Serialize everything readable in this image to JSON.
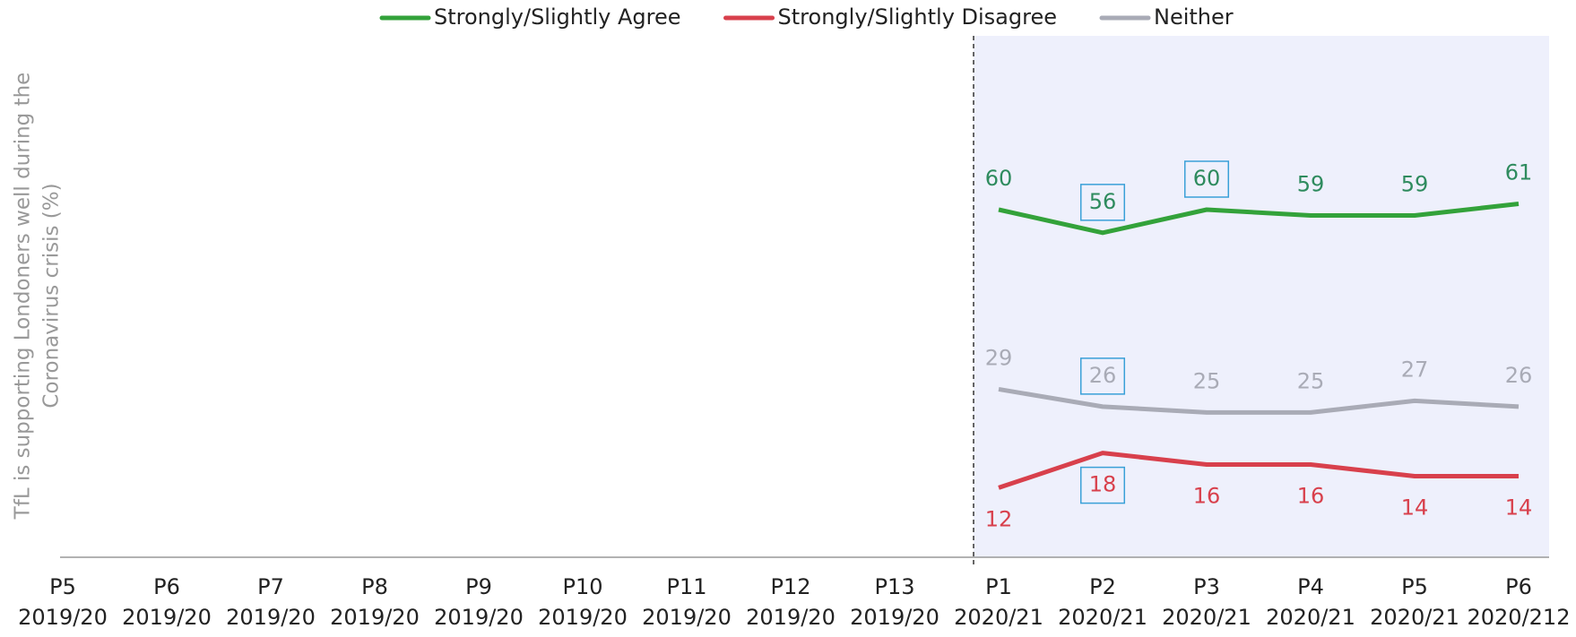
{
  "chart_data": {
    "type": "line",
    "y_label": [
      "TfL is supporting Londoners well during the",
      "Coronavirus crisis (%)"
    ],
    "categories": [
      [
        "P5",
        "2019/20"
      ],
      [
        "P6",
        "2019/20"
      ],
      [
        "P7",
        "2019/20"
      ],
      [
        "P8",
        "2019/20"
      ],
      [
        "P9",
        "2019/20"
      ],
      [
        "P10",
        "2019/20"
      ],
      [
        "P11",
        "2019/20"
      ],
      [
        "P12",
        "2019/20"
      ],
      [
        "P13",
        "2019/20"
      ],
      [
        "P1",
        "2020/21"
      ],
      [
        "P2",
        "2020/21"
      ],
      [
        "P3",
        "2020/21"
      ],
      [
        "P4",
        "2020/21"
      ],
      [
        "P5",
        "2020/21"
      ],
      [
        "P6",
        "2020/212"
      ]
    ],
    "series": [
      {
        "name": "Strongly/Slightly Agree",
        "color": "#33a23a",
        "label_color": "#2e8b5e",
        "label_position": "above",
        "highlighted": [
          10,
          11
        ],
        "values": [
          null,
          null,
          null,
          null,
          null,
          null,
          null,
          null,
          null,
          60,
          56,
          60,
          59,
          59,
          61
        ]
      },
      {
        "name": "Strongly/Slightly Disagree",
        "color": "#d8404c",
        "label_color": "#d8404c",
        "label_position": "below",
        "highlighted": [
          10
        ],
        "values": [
          null,
          null,
          null,
          null,
          null,
          null,
          null,
          null,
          null,
          12,
          18,
          16,
          16,
          14,
          14
        ]
      },
      {
        "name": "Neither",
        "color": "#a9abb6",
        "label_color": "#a9abb6",
        "label_position": "above",
        "highlighted": [
          10
        ],
        "values": [
          null,
          null,
          null,
          null,
          null,
          null,
          null,
          null,
          null,
          29,
          26,
          25,
          25,
          27,
          26
        ]
      }
    ],
    "ylim": [
      0,
      90
    ],
    "legend": "top"
  }
}
